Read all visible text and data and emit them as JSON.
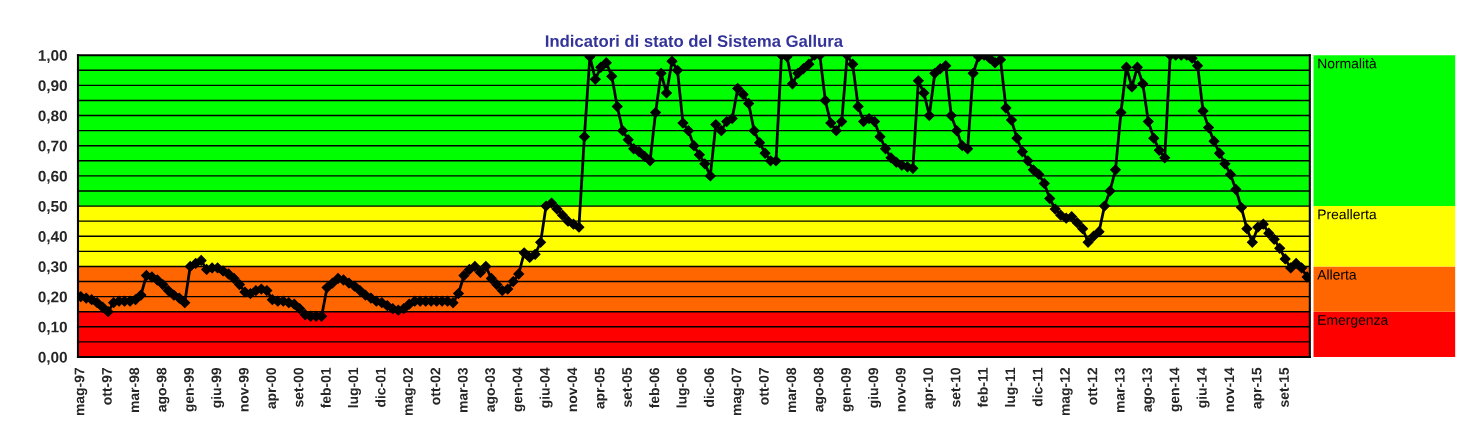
{
  "chart_data": {
    "type": "line",
    "title": "Indicatori di stato del Sistema Gallura",
    "categories": [
      "mag-97",
      null,
      null,
      null,
      null,
      "ott-97",
      null,
      null,
      null,
      null,
      "mar-98",
      null,
      null,
      null,
      null,
      "ago-98",
      null,
      null,
      null,
      null,
      "gen-99",
      null,
      null,
      null,
      null,
      "giu-99",
      null,
      null,
      null,
      null,
      "nov-99",
      null,
      null,
      null,
      null,
      "apr-00",
      null,
      null,
      null,
      null,
      "set-00",
      null,
      null,
      null,
      null,
      "feb-01",
      null,
      null,
      null,
      null,
      "lug-01",
      null,
      null,
      null,
      null,
      "dic-01",
      null,
      null,
      null,
      null,
      "mag-02",
      null,
      null,
      null,
      null,
      "ott-02",
      null,
      null,
      null,
      null,
      "mar-03",
      null,
      null,
      null,
      null,
      "ago-03",
      null,
      null,
      null,
      null,
      "gen-04",
      null,
      null,
      null,
      null,
      "giu-04",
      null,
      null,
      null,
      null,
      "nov-04",
      null,
      null,
      null,
      null,
      "apr-05",
      null,
      null,
      null,
      null,
      "set-05",
      null,
      null,
      null,
      null,
      "feb-06",
      null,
      null,
      null,
      null,
      "lug-06",
      null,
      null,
      null,
      null,
      "dic-06",
      null,
      null,
      null,
      null,
      "mag-07",
      null,
      null,
      null,
      null,
      "ott-07",
      null,
      null,
      null,
      null,
      "mar-08",
      null,
      null,
      null,
      null,
      "ago-08",
      null,
      null,
      null,
      null,
      "gen-09",
      null,
      null,
      null,
      null,
      "giu-09",
      null,
      null,
      null,
      null,
      "nov-09",
      null,
      null,
      null,
      null,
      "apr-10",
      null,
      null,
      null,
      null,
      "set-10",
      null,
      null,
      null,
      null,
      "feb-11",
      null,
      null,
      null,
      null,
      "lug-11",
      null,
      null,
      null,
      null,
      "dic-11",
      null,
      null,
      null,
      null,
      "mag-12",
      null,
      null,
      null,
      null,
      "ott-12",
      null,
      null,
      null,
      null,
      "mar-13",
      null,
      null,
      null,
      null,
      "ago-13",
      null,
      null,
      null,
      null,
      "gen-14",
      null,
      null,
      null,
      null,
      "giu-14",
      null,
      null,
      null,
      null,
      "nov-14",
      null,
      null,
      null,
      null,
      "apr-15",
      null,
      null,
      null,
      null,
      "set-15",
      null,
      null,
      null,
      null
    ],
    "series": [
      {
        "color": "#000000",
        "values": [
          0.2,
          0.195,
          0.19,
          0.18,
          0.165,
          0.15,
          0.18,
          0.185,
          0.185,
          0.185,
          0.19,
          0.205,
          0.27,
          0.265,
          0.255,
          0.24,
          0.22,
          0.205,
          0.195,
          0.18,
          0.3,
          0.31,
          0.32,
          0.29,
          0.295,
          0.295,
          0.285,
          0.275,
          0.26,
          0.24,
          0.215,
          0.21,
          0.22,
          0.225,
          0.22,
          0.19,
          0.185,
          0.185,
          0.18,
          0.175,
          0.16,
          0.14,
          0.135,
          0.135,
          0.135,
          0.23,
          0.245,
          0.26,
          0.255,
          0.245,
          0.235,
          0.22,
          0.205,
          0.195,
          0.185,
          0.18,
          0.17,
          0.16,
          0.155,
          0.16,
          0.175,
          0.185,
          0.185,
          0.185,
          0.185,
          0.185,
          0.185,
          0.185,
          0.18,
          0.21,
          0.27,
          0.29,
          0.3,
          0.28,
          0.3,
          0.26,
          0.24,
          0.22,
          0.225,
          0.25,
          0.275,
          0.345,
          0.33,
          0.34,
          0.38,
          0.5,
          0.51,
          0.49,
          0.47,
          0.45,
          0.44,
          0.43,
          0.73,
          0.995,
          0.92,
          0.96,
          0.975,
          0.93,
          0.83,
          0.75,
          0.72,
          0.69,
          0.68,
          0.665,
          0.65,
          0.81,
          0.94,
          0.875,
          0.98,
          0.95,
          0.775,
          0.75,
          0.7,
          0.67,
          0.64,
          0.6,
          0.77,
          0.75,
          0.78,
          0.79,
          0.89,
          0.87,
          0.84,
          0.75,
          0.71,
          0.675,
          0.65,
          0.65,
          1.0,
          0.995,
          0.905,
          0.94,
          0.955,
          0.97,
          1.0,
          1.0,
          0.85,
          0.775,
          0.75,
          0.78,
          1.0,
          0.97,
          0.83,
          0.78,
          0.79,
          0.78,
          0.73,
          0.69,
          0.66,
          0.645,
          0.635,
          0.63,
          0.625,
          0.915,
          0.875,
          0.8,
          0.94,
          0.955,
          0.965,
          0.8,
          0.75,
          0.7,
          0.69,
          0.94,
          0.995,
          1.0,
          0.99,
          0.975,
          0.985,
          0.825,
          0.785,
          0.725,
          0.68,
          0.65,
          0.62,
          0.605,
          0.575,
          0.525,
          0.49,
          0.47,
          0.46,
          0.465,
          0.445,
          0.425,
          0.38,
          0.4,
          0.415,
          0.5,
          0.55,
          0.62,
          0.81,
          0.96,
          0.895,
          0.96,
          0.905,
          0.78,
          0.725,
          0.685,
          0.66,
          1.0,
          1.0,
          1.0,
          1.0,
          0.99,
          0.965,
          0.815,
          0.76,
          0.715,
          0.675,
          0.64,
          0.605,
          0.555,
          0.495,
          0.425,
          0.38,
          0.43,
          0.44,
          0.41,
          0.39,
          0.36,
          0.325,
          0.295,
          0.31,
          0.295,
          0.265
        ]
      }
    ],
    "ylim": [
      0,
      1
    ],
    "yticks": [
      {
        "value": 0,
        "label": "0,00"
      },
      {
        "value": 0.05,
        "label": null
      },
      {
        "value": 0.1,
        "label": "0,10"
      },
      {
        "value": 0.15,
        "label": null
      },
      {
        "value": 0.2,
        "label": "0,20"
      },
      {
        "value": 0.25,
        "label": null
      },
      {
        "value": 0.3,
        "label": "0,30"
      },
      {
        "value": 0.35,
        "label": null
      },
      {
        "value": 0.4,
        "label": "0,40"
      },
      {
        "value": 0.45,
        "label": null
      },
      {
        "value": 0.5,
        "label": "0,50"
      },
      {
        "value": 0.55,
        "label": null
      },
      {
        "value": 0.6,
        "label": "0,60"
      },
      {
        "value": 0.65,
        "label": null
      },
      {
        "value": 0.7,
        "label": "0,70"
      },
      {
        "value": 0.75,
        "label": null
      },
      {
        "value": 0.8,
        "label": "0,80"
      },
      {
        "value": 0.85,
        "label": null
      },
      {
        "value": 0.9,
        "label": "0,90"
      },
      {
        "value": 0.95,
        "label": null
      },
      {
        "value": 1,
        "label": "1,00"
      }
    ],
    "bands": [
      {
        "axis": "y",
        "from": 0,
        "to": 0.15,
        "label": "Emergenza",
        "color": "#ff0000"
      },
      {
        "axis": "y",
        "from": 0.15,
        "to": 0.3,
        "label": "Allerta",
        "color": "#ff6600"
      },
      {
        "axis": "y",
        "from": 0.3,
        "to": 0.5,
        "label": "Preallerta",
        "color": "#ffff00"
      },
      {
        "axis": "y",
        "from": 0.5,
        "to": 1,
        "label": "Normalità",
        "color": "#00ff00"
      }
    ],
    "grid": "y",
    "marker": "diamond",
    "line_style": "solid"
  }
}
